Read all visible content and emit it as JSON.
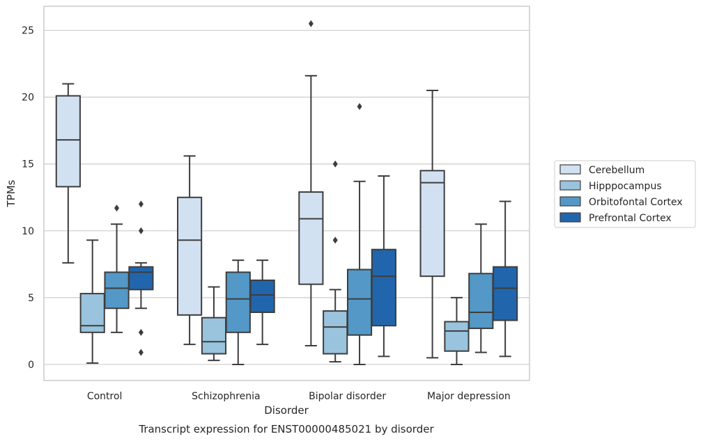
{
  "chart_data": {
    "type": "box",
    "caption": "Transcript expression for ENST00000485021 by disorder",
    "xlabel": "Disorder",
    "ylabel": "TPMs",
    "ylim": [
      -1.2,
      26.8
    ],
    "yticks": [
      0,
      5,
      10,
      15,
      20,
      25
    ],
    "grid": true,
    "legend_position": "right",
    "categories": [
      "Control",
      "Schizophrenia",
      "Bipolar disorder",
      "Major depression"
    ],
    "series": [
      {
        "name": "Cerebellum",
        "color": "#d1e1f2",
        "boxes": [
          {
            "whisker_low": 7.6,
            "q1": 13.3,
            "median": 16.8,
            "q3": 20.1,
            "whisker_high": 21.0,
            "outliers": []
          },
          {
            "whisker_low": 1.5,
            "q1": 3.7,
            "median": 9.3,
            "q3": 12.5,
            "whisker_high": 15.6,
            "outliers": []
          },
          {
            "whisker_low": 1.4,
            "q1": 6.0,
            "median": 10.9,
            "q3": 12.9,
            "whisker_high": 21.6,
            "outliers": [
              25.5
            ]
          },
          {
            "whisker_low": 0.5,
            "q1": 6.6,
            "median": 13.6,
            "q3": 14.5,
            "whisker_high": 20.5,
            "outliers": []
          }
        ]
      },
      {
        "name": "Hipppocampus",
        "color": "#9ac4dd",
        "boxes": [
          {
            "whisker_low": 0.1,
            "q1": 2.4,
            "median": 2.9,
            "q3": 5.3,
            "whisker_high": 9.3,
            "outliers": []
          },
          {
            "whisker_low": 0.3,
            "q1": 0.8,
            "median": 1.7,
            "q3": 3.5,
            "whisker_high": 5.8,
            "outliers": []
          },
          {
            "whisker_low": 0.2,
            "q1": 0.8,
            "median": 2.8,
            "q3": 4.0,
            "whisker_high": 5.6,
            "outliers": [
              15.0,
              9.3
            ]
          },
          {
            "whisker_low": 0.0,
            "q1": 1.0,
            "median": 2.5,
            "q3": 3.2,
            "whisker_high": 5.0,
            "outliers": []
          }
        ]
      },
      {
        "name": "Orbitofontal Cortex",
        "color": "#5398c6",
        "boxes": [
          {
            "whisker_low": 2.4,
            "q1": 4.2,
            "median": 5.7,
            "q3": 6.9,
            "whisker_high": 10.5,
            "outliers": [
              11.7
            ]
          },
          {
            "whisker_low": 0.0,
            "q1": 2.4,
            "median": 4.9,
            "q3": 6.9,
            "whisker_high": 7.8,
            "outliers": []
          },
          {
            "whisker_low": 0.0,
            "q1": 2.2,
            "median": 4.9,
            "q3": 7.1,
            "whisker_high": 13.7,
            "outliers": [
              19.3
            ]
          },
          {
            "whisker_low": 0.9,
            "q1": 2.7,
            "median": 3.9,
            "q3": 6.8,
            "whisker_high": 10.5,
            "outliers": []
          }
        ]
      },
      {
        "name": "Prefrontal Cortex",
        "color": "#2166ac",
        "boxes": [
          {
            "whisker_low": 4.2,
            "q1": 5.6,
            "median": 6.9,
            "q3": 7.3,
            "whisker_high": 7.6,
            "outliers": [
              12.0,
              10.0,
              2.4,
              0.9
            ]
          },
          {
            "whisker_low": 1.5,
            "q1": 3.9,
            "median": 5.2,
            "q3": 6.3,
            "whisker_high": 7.8,
            "outliers": []
          },
          {
            "whisker_low": 0.6,
            "q1": 2.9,
            "median": 6.6,
            "q3": 8.6,
            "whisker_high": 14.1,
            "outliers": []
          },
          {
            "whisker_low": 0.6,
            "q1": 3.3,
            "median": 5.7,
            "q3": 7.3,
            "whisker_high": 12.2,
            "outliers": []
          }
        ]
      }
    ]
  }
}
